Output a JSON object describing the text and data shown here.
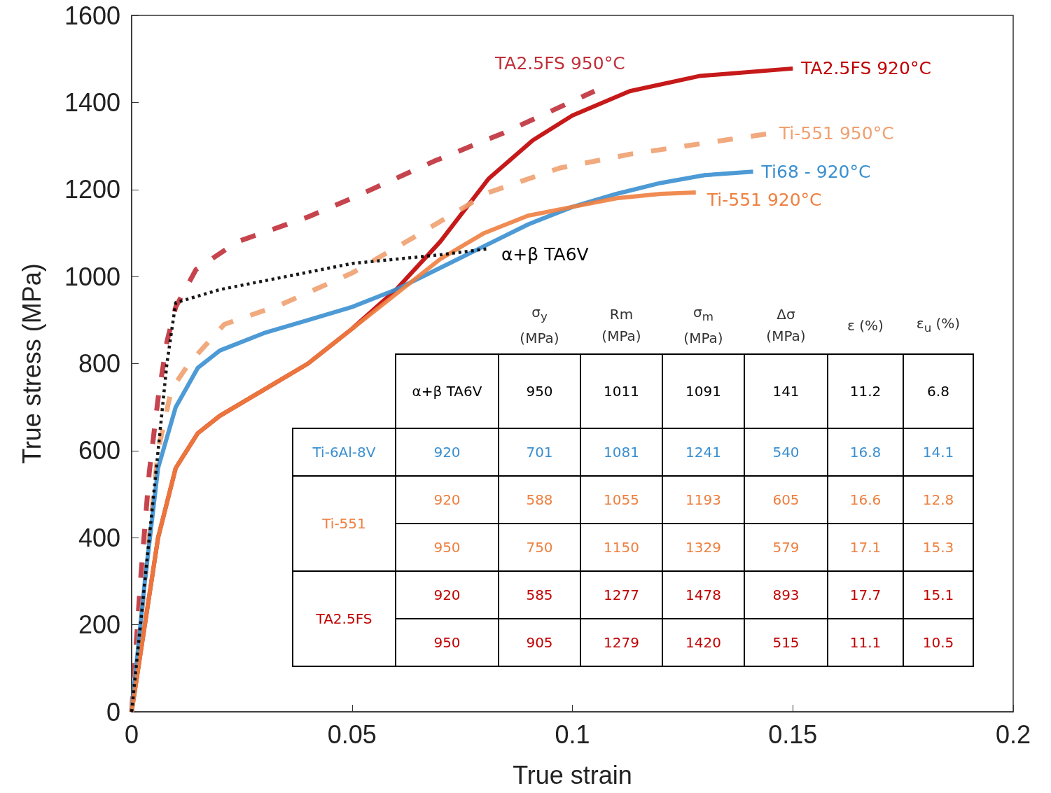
{
  "chart_data": {
    "type": "line",
    "xlabel": "True strain",
    "ylabel": "True stress (MPa)",
    "xlim": [
      0,
      0.2
    ],
    "ylim": [
      0,
      1600
    ],
    "xticks": [
      0,
      0.05,
      0.1,
      0.15,
      0.2
    ],
    "yticks": [
      0,
      200,
      400,
      600,
      800,
      1000,
      1200,
      1400,
      1600
    ],
    "grid": false,
    "marker": "none",
    "series": [
      {
        "name": "TA2.5FS 950°C",
        "color": "#c0303a",
        "line_style": "dashed",
        "x": [
          0,
          0.002,
          0.004,
          0.006,
          0.008,
          0.01,
          0.0146,
          0.024,
          0.04,
          0.05,
          0.0686,
          0.0844,
          0.105
        ],
        "values": [
          0,
          300,
          550,
          720,
          850,
          930,
          1016,
          1080,
          1137,
          1180,
          1265,
          1330,
          1426
        ]
      },
      {
        "name": "TA2.5FS 920°C",
        "color": "#c00000",
        "line_style": "solid",
        "x": [
          0,
          0.003,
          0.006,
          0.01,
          0.015,
          0.02,
          0.03,
          0.04,
          0.05,
          0.06,
          0.07,
          0.081,
          0.091,
          0.1,
          0.113,
          0.129,
          0.15
        ],
        "values": [
          0,
          200,
          400,
          560,
          640,
          680,
          740,
          800,
          880,
          970,
          1080,
          1225,
          1313,
          1370,
          1426,
          1461,
          1478
        ]
      },
      {
        "name": "Ti-551 950°C",
        "color": "#f0a070",
        "line_style": "dashed",
        "x": [
          0,
          0.003,
          0.006,
          0.009,
          0.013,
          0.021,
          0.034,
          0.05,
          0.065,
          0.081,
          0.097,
          0.113,
          0.129,
          0.145
        ],
        "values": [
          0,
          300,
          600,
          740,
          800,
          890,
          936,
          1008,
          1096,
          1193,
          1249,
          1281,
          1305,
          1329
        ]
      },
      {
        "name": "Ti68 - 920°C",
        "color": "#3a8fd0",
        "line_style": "solid",
        "x": [
          0,
          0.003,
          0.006,
          0.01,
          0.015,
          0.02,
          0.03,
          0.04,
          0.05,
          0.06,
          0.07,
          0.08,
          0.09,
          0.1,
          0.11,
          0.12,
          0.13,
          0.141
        ],
        "values": [
          0,
          300,
          560,
          700,
          790,
          830,
          870,
          900,
          930,
          970,
          1020,
          1070,
          1120,
          1160,
          1190,
          1215,
          1233,
          1241
        ]
      },
      {
        "name": "Ti-551 920°C",
        "color": "#ee8040",
        "line_style": "solid",
        "x": [
          0,
          0.003,
          0.006,
          0.01,
          0.015,
          0.02,
          0.03,
          0.04,
          0.05,
          0.06,
          0.07,
          0.08,
          0.09,
          0.1,
          0.11,
          0.12,
          0.128
        ],
        "values": [
          0,
          200,
          400,
          560,
          640,
          680,
          740,
          800,
          880,
          960,
          1040,
          1100,
          1140,
          1160,
          1180,
          1190,
          1193
        ]
      },
      {
        "name": "α+β TA6V",
        "color": "#000000",
        "line_style": "dotted",
        "x": [
          0,
          0.003,
          0.006,
          0.008,
          0.01,
          0.015,
          0.02,
          0.03,
          0.035,
          0.04,
          0.045,
          0.05,
          0.06,
          0.07,
          0.081
        ],
        "values": [
          0,
          300,
          600,
          800,
          940,
          955,
          970,
          990,
          1000,
          1010,
          1020,
          1030,
          1040,
          1050,
          1064
        ]
      }
    ],
    "annotations": [
      "σ$_{y}$ (MPa)",
      "Rm (MPa)",
      "σ$_{m}$ (MPa)",
      "Δσ (MPa)",
      "ε (%)",
      "ε$_{u}$ (%)",
      "α+β TA6V",
      "950",
      "1011",
      "1091",
      "141",
      "11.2",
      "6.8",
      "Ti-6Al-8V",
      "920",
      "701",
      "1081",
      "1241",
      "540",
      "16.8",
      "14.1",
      "Ti-551",
      "920",
      "588",
      "1055",
      "1193",
      "605",
      "16.6",
      "12.8",
      "950",
      "750",
      "1150",
      "1329",
      "579",
      "17.1",
      "15.3",
      "TA2.5FS",
      "920",
      "585",
      "1277",
      "1478",
      "893",
      "17.7",
      "15.1",
      "950",
      "905",
      "1279",
      "1420",
      "515",
      "11.1",
      "10.5"
    ]
  }
}
